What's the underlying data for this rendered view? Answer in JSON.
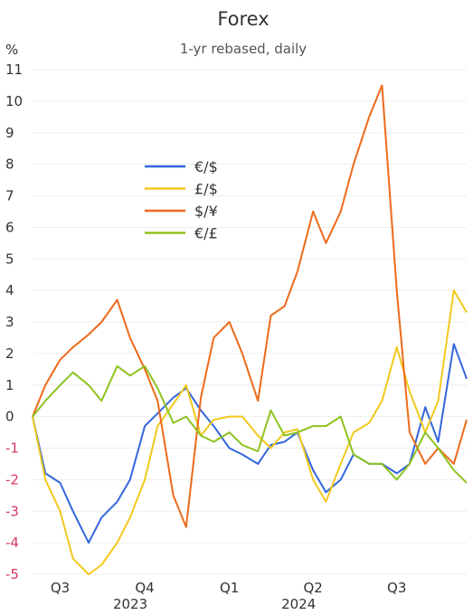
{
  "chart_data": {
    "type": "line",
    "title": "Forex",
    "subtitle": "1-yr rebased, daily",
    "ylabel": "%",
    "ylim": [
      -5,
      11
    ],
    "yticks": [
      11,
      10,
      9,
      8,
      7,
      6,
      5,
      4,
      3,
      2,
      1,
      0,
      -1,
      -2,
      -3,
      -4,
      -5
    ],
    "y_positive_color": "#333333",
    "y_negative_color": "#d6395f",
    "grid": true,
    "legend": "upper-left-center",
    "x_ticks": [
      {
        "label": "Q3",
        "x": "2023-07"
      },
      {
        "label": "Q4",
        "x": "2023-10"
      },
      {
        "label": "Q1",
        "x": "2024-01"
      },
      {
        "label": "Q2",
        "x": "2024-04"
      },
      {
        "label": "Q3",
        "x": "2024-07"
      }
    ],
    "x_years": [
      {
        "label": "2023",
        "x": "2023-10"
      },
      {
        "label": "2024",
        "x": "2024-04"
      }
    ],
    "series": [
      {
        "name": "€/$",
        "color": "#3366dd",
        "x": [
          "2023-06-01",
          "2023-06-15",
          "2023-07-01",
          "2023-07-15",
          "2023-08-01",
          "2023-08-15",
          "2023-09-01",
          "2023-09-15",
          "2023-10-01",
          "2023-10-15",
          "2023-11-01",
          "2023-11-15",
          "2023-12-01",
          "2023-12-15",
          "2024-01-01",
          "2024-01-15",
          "2024-02-01",
          "2024-02-15",
          "2024-03-01",
          "2024-03-15",
          "2024-04-01",
          "2024-04-15",
          "2024-05-01",
          "2024-05-15",
          "2024-06-01",
          "2024-06-15",
          "2024-07-01",
          "2024-07-15",
          "2024-08-01",
          "2024-08-15",
          "2024-09-01",
          "2024-09-15"
        ],
        "values": [
          0,
          -1.8,
          -2.1,
          -3.0,
          -4.0,
          -3.2,
          -2.7,
          -2.0,
          -0.3,
          0.1,
          0.6,
          0.9,
          0.2,
          -0.3,
          -1.0,
          -1.2,
          -1.5,
          -0.9,
          -0.8,
          -0.5,
          -1.7,
          -2.4,
          -2.0,
          -1.2,
          -1.5,
          -1.5,
          -1.8,
          -1.5,
          0.3,
          -0.8,
          2.3,
          1.2
        ]
      },
      {
        "name": "£/$",
        "color": "#f2c81e",
        "x": [
          "2023-06-01",
          "2023-06-15",
          "2023-07-01",
          "2023-07-15",
          "2023-08-01",
          "2023-08-15",
          "2023-09-01",
          "2023-09-15",
          "2023-10-01",
          "2023-10-15",
          "2023-11-01",
          "2023-11-15",
          "2023-12-01",
          "2023-12-15",
          "2024-01-01",
          "2024-01-15",
          "2024-02-01",
          "2024-02-15",
          "2024-03-01",
          "2024-03-15",
          "2024-04-01",
          "2024-04-15",
          "2024-05-01",
          "2024-05-15",
          "2024-06-01",
          "2024-06-15",
          "2024-07-01",
          "2024-07-15",
          "2024-08-01",
          "2024-08-15",
          "2024-09-01",
          "2024-09-15"
        ],
        "values": [
          0,
          -2.0,
          -3.0,
          -4.5,
          -5.0,
          -4.7,
          -4.0,
          -3.2,
          -2.0,
          -0.3,
          0.4,
          1.0,
          -0.6,
          -0.1,
          0,
          0,
          -0.6,
          -1.0,
          -0.5,
          -0.4,
          -2.0,
          -2.7,
          -1.5,
          -0.5,
          -0.2,
          0.5,
          2.2,
          0.8,
          -0.5,
          0.5,
          4.0,
          3.3
        ]
      },
      {
        "name": "$/¥",
        "color": "#ee6a1a",
        "x": [
          "2023-06-01",
          "2023-06-15",
          "2023-07-01",
          "2023-07-15",
          "2023-08-01",
          "2023-08-15",
          "2023-09-01",
          "2023-09-15",
          "2023-10-01",
          "2023-10-15",
          "2023-11-01",
          "2023-11-15",
          "2023-12-01",
          "2023-12-15",
          "2024-01-01",
          "2024-01-15",
          "2024-02-01",
          "2024-02-15",
          "2024-03-01",
          "2024-03-15",
          "2024-04-01",
          "2024-04-15",
          "2024-05-01",
          "2024-05-15",
          "2024-06-01",
          "2024-06-15",
          "2024-07-01",
          "2024-07-15",
          "2024-08-01",
          "2024-08-15",
          "2024-09-01",
          "2024-09-15"
        ],
        "values": [
          0,
          1.0,
          1.8,
          2.2,
          2.6,
          3.0,
          3.7,
          2.5,
          1.5,
          0.5,
          -2.5,
          -3.5,
          0.6,
          2.5,
          3.0,
          2.0,
          0.5,
          3.2,
          3.5,
          4.6,
          6.5,
          5.5,
          6.5,
          8.0,
          9.5,
          10.5,
          4.0,
          -0.5,
          -1.5,
          -1.0,
          -1.5,
          -0.1
        ]
      },
      {
        "name": "€/£",
        "color": "#8ec21f",
        "x": [
          "2023-06-01",
          "2023-06-15",
          "2023-07-01",
          "2023-07-15",
          "2023-08-01",
          "2023-08-15",
          "2023-09-01",
          "2023-09-15",
          "2023-10-01",
          "2023-10-15",
          "2023-11-01",
          "2023-11-15",
          "2023-12-01",
          "2023-12-15",
          "2024-01-01",
          "2024-01-15",
          "2024-02-01",
          "2024-02-15",
          "2024-03-01",
          "2024-03-15",
          "2024-04-01",
          "2024-04-15",
          "2024-05-01",
          "2024-05-15",
          "2024-06-01",
          "2024-06-15",
          "2024-07-01",
          "2024-07-15",
          "2024-08-01",
          "2024-08-15",
          "2024-09-01",
          "2024-09-15"
        ],
        "values": [
          0,
          0.5,
          1.0,
          1.4,
          1.0,
          0.5,
          1.6,
          1.3,
          1.6,
          0.9,
          -0.2,
          0,
          -0.6,
          -0.8,
          -0.5,
          -0.9,
          -1.1,
          0.2,
          -0.6,
          -0.5,
          -0.3,
          -0.3,
          0,
          -1.2,
          -1.5,
          -1.5,
          -2.0,
          -1.5,
          -0.5,
          -1.0,
          -1.7,
          -2.1
        ]
      }
    ]
  }
}
